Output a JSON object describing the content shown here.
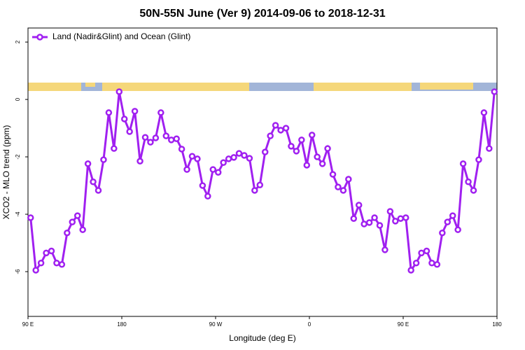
{
  "chart_data": {
    "type": "line",
    "title": "50N-55N June (Ver 9)   2014-09-06 to 2018-12-31",
    "x_label": "Longitude (deg E)",
    "y_label": "XCO2 - MLO trend (ppm)",
    "x": [
      92.5,
      97.5,
      102.5,
      107.5,
      112.5,
      117.5,
      122.5,
      127.5,
      132.5,
      137.5,
      142.5,
      147.5,
      152.5,
      157.5,
      162.5,
      167.5,
      172.5,
      177.5,
      182.5,
      187.5,
      192.5,
      197.5,
      202.5,
      207.5,
      212.5,
      217.5,
      222.5,
      227.5,
      232.5,
      237.5,
      242.5,
      247.5,
      252.5,
      257.5,
      262.5,
      267.5,
      272.5,
      277.5,
      282.5,
      287.5,
      292.5,
      297.5,
      302.5,
      307.5,
      312.5,
      317.5,
      322.5,
      327.5,
      332.5,
      337.5,
      342.5,
      347.5,
      352.5,
      357.5,
      362.5,
      367.5,
      372.5,
      377.5,
      382.5,
      387.5,
      392.5,
      397.5,
      402.5,
      407.5,
      412.5,
      417.5,
      422.5,
      427.5,
      432.5,
      437.5,
      442.5,
      447.5,
      452.5,
      457.5,
      462.5,
      467.5,
      472.5,
      477.5,
      482.5,
      487.5,
      492.5,
      497.5,
      502.5,
      507.5,
      512.5,
      517.5,
      522.5,
      527.5,
      532.5,
      537.5
    ],
    "series": [
      {
        "name": "Land (Nadir&Glint) and Ocean (Glint)",
        "color": "#a020f0",
        "values": [
          -4.12,
          -5.95,
          -5.7,
          -5.35,
          -5.28,
          -5.7,
          -5.75,
          -4.65,
          -4.27,
          -4.05,
          -4.54,
          -2.24,
          -2.87,
          -3.17,
          -2.1,
          -0.46,
          -1.71,
          0.27,
          -0.68,
          -1.12,
          -0.41,
          -2.15,
          -1.32,
          -1.49,
          -1.34,
          -0.46,
          -1.27,
          -1.41,
          -1.37,
          -1.73,
          -2.44,
          -1.98,
          -2.07,
          -3.0,
          -3.37,
          -2.44,
          -2.54,
          -2.2,
          -2.07,
          -2.02,
          -1.88,
          -1.95,
          -2.05,
          -3.17,
          -2.98,
          -1.83,
          -1.27,
          -0.9,
          -1.07,
          -1.0,
          -1.63,
          -1.8,
          -1.41,
          -2.29,
          -1.24,
          -2.0,
          -2.24,
          -1.71,
          -2.61,
          -3.05,
          -3.17,
          -2.78,
          -4.15,
          -3.68,
          -4.34,
          -4.29,
          -4.12,
          -4.39,
          -5.24,
          -3.9,
          -4.24,
          -4.15,
          -4.12,
          -5.95,
          -5.7,
          -5.35,
          -5.28,
          -5.7,
          -5.75,
          -4.65,
          -4.27,
          -4.05,
          -4.54,
          -2.24,
          -2.87,
          -3.17,
          -2.1,
          -0.46,
          -1.71,
          0.27
        ]
      }
    ],
    "xlim": [
      90,
      540
    ],
    "xticks": [
      {
        "value": 90,
        "label": "90 E"
      },
      {
        "value": 180,
        "label": "180"
      },
      {
        "value": 270,
        "label": "90 W"
      },
      {
        "value": 360,
        "label": "0"
      },
      {
        "value": 450,
        "label": "90 E"
      },
      {
        "value": 540,
        "label": "180"
      }
    ],
    "ylim": [
      -7.56,
      2.49
    ],
    "yticks": [
      -6,
      -4,
      -2,
      0,
      2
    ],
    "legend": "top-left"
  }
}
